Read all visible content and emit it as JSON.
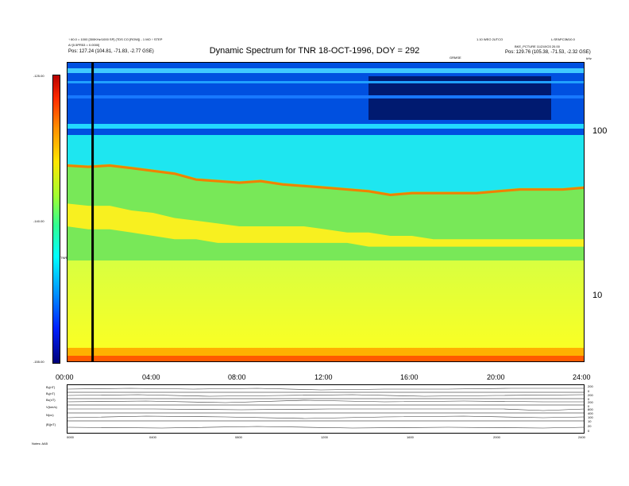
{
  "chart_data": {
    "type": "heatmap",
    "title": "Dynamic Spectrum for TNR 18-OCT-1996, DOY = 292",
    "header_left": [
      "↑ 60.0 = 1000 [300KHz/1000 SP] (TDS CO [ROW]) - 1 MO ↑ STEP",
      "A↑[0.5PR53 = 0.0000]",
      "Pos:   127.24 (104.81, -71.83, -2.77 GSE)"
    ],
    "header_right": [
      "1.10 WEO 2UTCO",
      "L:SFAPC3M10.0",
      "BKE_PCTURE 11/Z4XO3 20.00",
      "Pos:   129.76 (105.38, -71.53, -2.32 GSE)"
    ],
    "center_small_label": "GRMSE",
    "y_unit_label": "kHz",
    "colorbar": {
      "label": "TNR",
      "ticks": [
        "-125.00",
        "-140.00",
        "-155.00"
      ],
      "vmin": -155,
      "vmax": -125
    },
    "y_axis": {
      "scale": "log",
      "ticks": [
        "100",
        "10"
      ],
      "range_khz": [
        4,
        230
      ]
    },
    "x_axis": {
      "ticks": [
        "00:00",
        "04:00",
        "08:00",
        "12:00",
        "16:00",
        "20:00",
        "24:00"
      ],
      "range_h": [
        0,
        24
      ]
    },
    "marker_line_time_h": 1.2,
    "band_boundaries": {
      "x_hours": [
        0,
        1,
        2,
        3,
        4,
        5,
        6,
        7,
        8,
        9,
        10,
        11,
        12,
        13,
        14,
        15,
        16,
        17,
        18,
        19,
        20,
        21,
        22,
        23,
        24
      ],
      "cyan_lower_edge_khz": [
        58,
        57,
        58,
        56,
        54,
        52,
        48,
        47,
        46,
        47,
        45,
        44,
        43,
        42,
        41,
        39,
        40,
        40,
        40,
        40,
        41,
        42,
        42,
        42,
        43
      ],
      "yellow_band_top_khz": [
        34,
        33,
        33,
        31,
        30,
        28,
        27,
        26,
        25,
        25,
        25,
        25,
        24,
        23,
        23,
        22,
        22,
        21,
        21,
        21,
        21,
        21,
        21,
        21,
        21
      ],
      "yellow_band_bottom_khz": [
        25,
        24,
        24,
        23,
        22,
        21,
        21,
        20,
        20,
        20,
        20,
        20,
        20,
        20,
        19,
        19,
        19,
        19,
        19,
        19,
        19,
        19,
        19,
        19,
        19
      ]
    },
    "lower_panels": [
      {
        "label": "Bₓ(nT)",
        "right_ticks": [
          "200",
          "0"
        ]
      },
      {
        "label": "Bᵧ(nT)",
        "right_ticks": [
          "200",
          "0"
        ]
      },
      {
        "label": "Bₕ(nT)",
        "right_ticks": [
          "200",
          "0"
        ]
      },
      {
        "label": "V(km/s)",
        "right_ticks": [
          "800",
          "400"
        ]
      },
      {
        "label": "N(cc)",
        "right_ticks": [
          "100",
          "10"
        ]
      },
      {
        "label": "|B|(nT)",
        "right_ticks": [
          "20",
          "0"
        ]
      }
    ],
    "lower_x_ticks": [
      "0000",
      "0400",
      "0800",
      "1200",
      "1600",
      "2000",
      "2400"
    ],
    "lower_left_label": "Notes:  AA5"
  }
}
